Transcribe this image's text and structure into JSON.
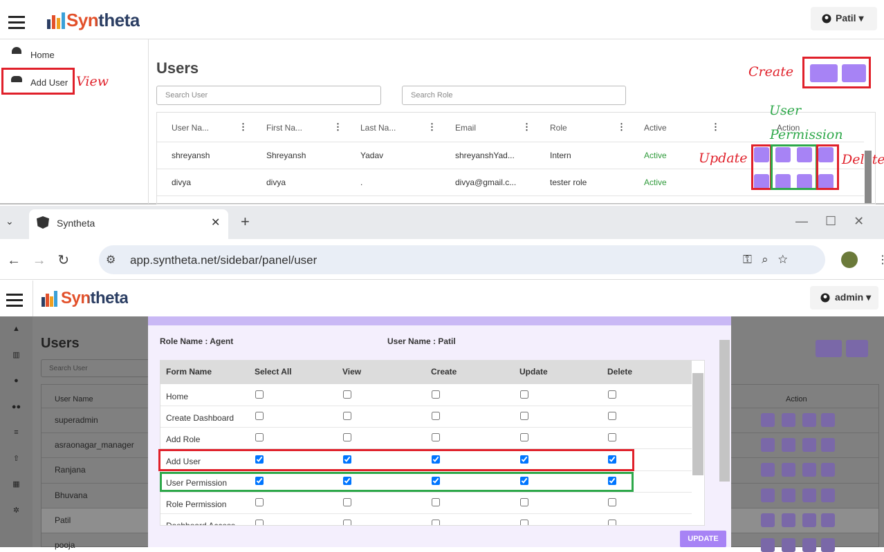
{
  "top_app": {
    "logo": "Syntheta",
    "user_menu": "Patil",
    "sidebar": [
      "Home",
      "Add User"
    ],
    "title": "Users",
    "search_user": "Search User",
    "search_role": "Search Role",
    "columns": [
      "User Na...",
      "First Na...",
      "Last Na...",
      "Email",
      "Role",
      "Active",
      "Action"
    ],
    "rows": [
      [
        "shreyansh",
        "Shreyansh",
        "Yadav",
        "shreyanshYad...",
        "Intern",
        "Active"
      ],
      [
        "divya",
        "divya",
        ".",
        "divya@gmail.c...",
        "tester role",
        "Active"
      ]
    ],
    "annotations": {
      "view": "View",
      "create": "Create",
      "update": "Update",
      "delete": "Delete",
      "user_permission": [
        "User",
        "Permission"
      ]
    }
  },
  "browser": {
    "tab_title": "Syntheta",
    "url": "app.syntheta.net/sidebar/panel/user"
  },
  "bottom_app": {
    "logo": "Syntheta",
    "user_menu": "admin",
    "title": "Users",
    "search_user": "Search User",
    "columns": [
      "User Name",
      "Action"
    ],
    "rows": [
      "superadmin",
      "asraonagar_manager",
      "Ranjana",
      "Bhuvana",
      "Patil",
      "pooja"
    ]
  },
  "modal": {
    "role_label": "Role Name : Agent",
    "user_label": "User Name : Patil",
    "columns": [
      "Form Name",
      "Select All",
      "View",
      "Create",
      "Update",
      "Delete"
    ],
    "rows": [
      {
        "name": "Home",
        "checked": [
          false,
          false,
          false,
          false,
          false
        ]
      },
      {
        "name": "Create Dashboard",
        "checked": [
          false,
          false,
          false,
          false,
          false
        ]
      },
      {
        "name": "Add Role",
        "checked": [
          false,
          false,
          false,
          false,
          false
        ]
      },
      {
        "name": "Add User",
        "checked": [
          true,
          true,
          true,
          true,
          true
        ]
      },
      {
        "name": "User Permission",
        "checked": [
          true,
          true,
          true,
          true,
          true
        ]
      },
      {
        "name": "Role Permission",
        "checked": [
          false,
          false,
          false,
          false,
          false
        ]
      },
      {
        "name": "Dashboard Access",
        "checked": [
          false,
          false,
          false,
          false,
          false
        ]
      }
    ],
    "update_button": "UPDATE"
  }
}
